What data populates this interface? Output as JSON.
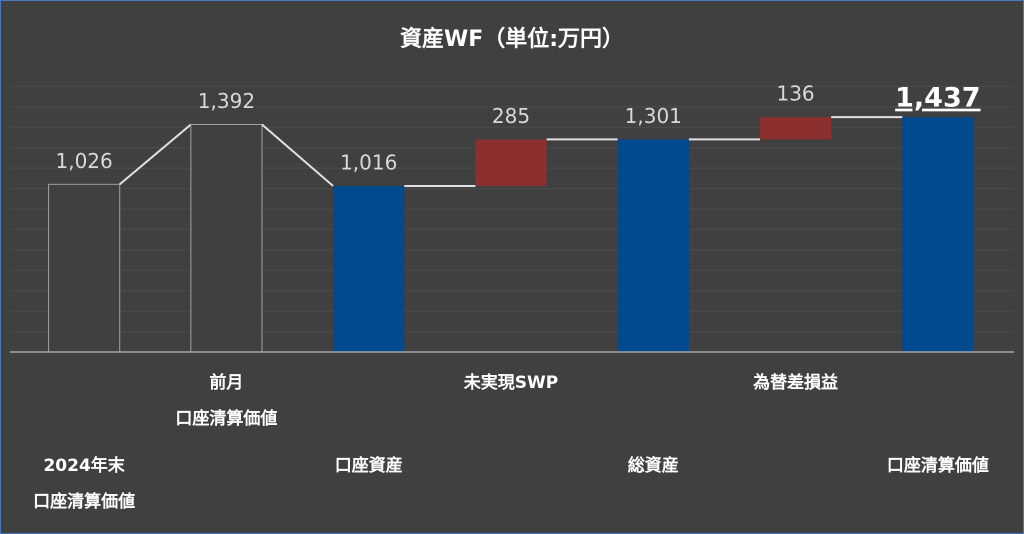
{
  "chart_data": {
    "type": "waterfall",
    "title": "資産WF（単位:万円）",
    "categories": [
      [
        "2024年末",
        "口座清算価値"
      ],
      [
        "前月",
        "口座清算価値"
      ],
      [
        "口座資産"
      ],
      [
        "未実現SWP"
      ],
      [
        "総資産"
      ],
      [
        "為替差損益"
      ],
      [
        "口座清算価値"
      ]
    ],
    "values": [
      1026,
      1392,
      1016,
      285,
      1301,
      136,
      1437
    ],
    "value_labels": [
      "1,026",
      "1,392",
      "1,016",
      "285",
      "1,301",
      "136",
      "1,437"
    ],
    "measure": [
      "absolute",
      "absolute",
      "absolute",
      "relative",
      "absolute",
      "relative",
      "absolute"
    ],
    "colors": [
      "#404040",
      "#404040",
      "#004a8d",
      "#8b2f2f",
      "#004a8d",
      "#8b2f2f",
      "#004a8d"
    ],
    "emphasis": [
      false,
      false,
      false,
      false,
      false,
      false,
      true
    ],
    "ylim": [
      0,
      1750
    ],
    "yticks": [
      0,
      125,
      250,
      375,
      500,
      625,
      750,
      875,
      1000,
      1125,
      1250,
      1375,
      1500,
      1625
    ],
    "grid": true
  }
}
